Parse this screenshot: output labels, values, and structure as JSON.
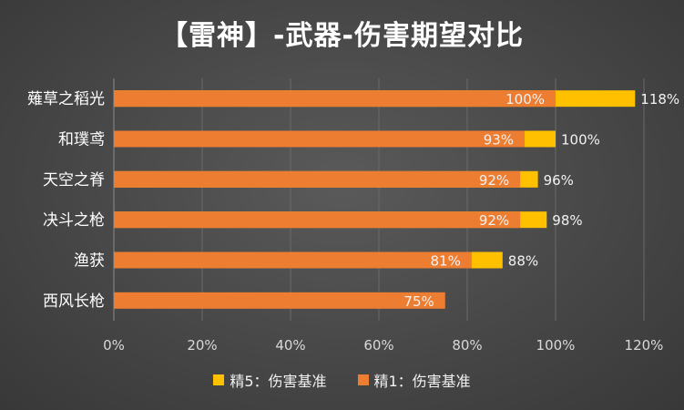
{
  "chart_data": {
    "type": "bar",
    "orientation": "horizontal",
    "stacked": false,
    "title": "【雷神】-武器-伤害期望对比",
    "categories": [
      "薙草之稻光",
      "和璞鸢",
      "天空之脊",
      "决斗之枪",
      "渔获",
      "西风长枪"
    ],
    "series": [
      {
        "name": "精5：伤害基准",
        "color": "#ffc000",
        "values": [
          118,
          100,
          96,
          98,
          88,
          null
        ],
        "labels": [
          "118%",
          "100%",
          "96%",
          "98%",
          "88%",
          ""
        ]
      },
      {
        "name": "精1：伤害基准",
        "color": "#ed7d31",
        "values": [
          100,
          93,
          92,
          92,
          81,
          75
        ],
        "labels": [
          "100%",
          "93%",
          "92%",
          "92%",
          "81%",
          "75%"
        ]
      }
    ],
    "xlim": [
      0,
      120
    ],
    "xticks": [
      0,
      20,
      40,
      60,
      80,
      100,
      120
    ],
    "xtick_labels": [
      "0%",
      "20%",
      "40%",
      "60%",
      "80%",
      "100%",
      "120%"
    ],
    "grid": true,
    "legend_position": "bottom",
    "xlabel": "",
    "ylabel": ""
  }
}
